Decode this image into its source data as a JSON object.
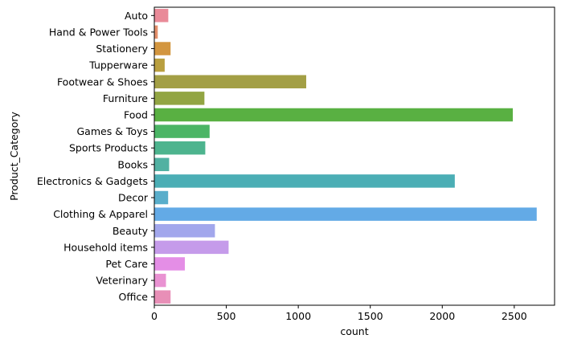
{
  "chart_data": {
    "type": "bar",
    "orientation": "horizontal",
    "title": "",
    "xlabel": "count",
    "ylabel": "Product_Category",
    "xlim": [
      0,
      2780
    ],
    "xticks": [
      0,
      500,
      1000,
      1500,
      2000,
      2500
    ],
    "grid": false,
    "legend": "none",
    "categories": [
      "Auto",
      "Hand & Power Tools",
      "Stationery",
      "Tupperware",
      "Footwear & Shoes",
      "Furniture",
      "Food",
      "Games & Toys",
      "Sports Products",
      "Books",
      "Electronics & Gadgets",
      "Decor",
      "Clothing & Apparel",
      "Beauty",
      "Household items",
      "Pet Care",
      "Veterinary",
      "Office"
    ],
    "values": [
      97,
      24,
      113,
      72,
      1055,
      348,
      2490,
      384,
      354,
      103,
      2087,
      96,
      2656,
      421,
      516,
      212,
      81,
      113
    ],
    "colors": [
      "#e98a98",
      "#e48f6b",
      "#d3963f",
      "#b99f3f",
      "#a39f45",
      "#92a543",
      "#59b042",
      "#4bb565",
      "#4db48e",
      "#51b1a2",
      "#4baeb5",
      "#59aecb",
      "#63aae6",
      "#a2a7ec",
      "#c59bea",
      "#e48ee6",
      "#e992d2",
      "#e88fb7"
    ]
  }
}
